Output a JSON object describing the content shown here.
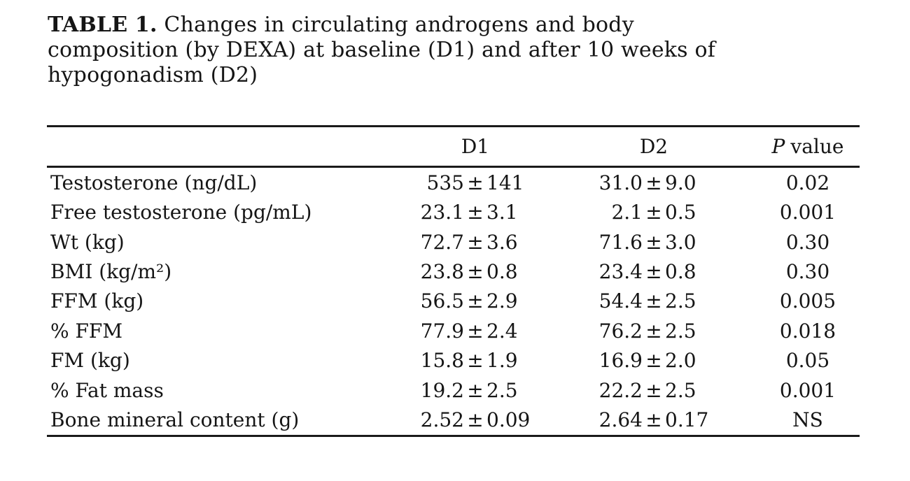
{
  "page": {
    "background_color": "#ffffff",
    "text_color": "#151515",
    "rule_color": "#1a1a1a"
  },
  "title": {
    "label": "TABLE 1.",
    "line1": "Changes in circulating androgens and body",
    "line2": "composition (by DEXA) at baseline (D1) and after 10 weeks of",
    "line3": "hypogonadism (D2)"
  },
  "table": {
    "pm": "±",
    "header": {
      "col1": "",
      "d1": "D1",
      "d2": "D2",
      "p_italic": "P",
      "p_rest": "value"
    },
    "rows": [
      {
        "label": "Testosterone (ng/dL)",
        "d1_value": "535",
        "d1_err": "141",
        "d2_value": "31.0",
        "d2_err": "9.0",
        "p": "0.02"
      },
      {
        "label": "Free testosterone (pg/mL)",
        "d1_value": "23.1",
        "d1_err": "3.1",
        "d2_value": "2.1",
        "d2_err": "0.5",
        "p": "0.001"
      },
      {
        "label": "Wt (kg)",
        "d1_value": "72.7",
        "d1_err": "3.6",
        "d2_value": "71.6",
        "d2_err": "3.0",
        "p": "0.30"
      },
      {
        "label": "BMI (kg/m²)",
        "d1_value": "23.8",
        "d1_err": "0.8",
        "d2_value": "23.4",
        "d2_err": "0.8",
        "p": "0.30"
      },
      {
        "label": "FFM (kg)",
        "d1_value": "56.5",
        "d1_err": "2.9",
        "d2_value": "54.4",
        "d2_err": "2.5",
        "p": "0.005"
      },
      {
        "label": "% FFM",
        "d1_value": "77.9",
        "d1_err": "2.4",
        "d2_value": "76.2",
        "d2_err": "2.5",
        "p": "0.018"
      },
      {
        "label": "FM (kg)",
        "d1_value": "15.8",
        "d1_err": "1.9",
        "d2_value": "16.9",
        "d2_err": "2.0",
        "p": "0.05"
      },
      {
        "label": "% Fat mass",
        "d1_value": "19.2",
        "d1_err": "2.5",
        "d2_value": "22.2",
        "d2_err": "2.5",
        "p": "0.001"
      },
      {
        "label": "Bone mineral content (g)",
        "d1_value": "2.52",
        "d1_err": "0.09",
        "d2_value": "2.64",
        "d2_err": "0.17",
        "p": "NS"
      }
    ]
  },
  "chart_data": {
    "type": "table",
    "title": "TABLE 1. Changes in circulating androgens and body composition (by DEXA) at baseline (D1) and after 10 weeks of hypogonadism (D2)",
    "columns": [
      "",
      "D1",
      "D2",
      "P value"
    ],
    "rows": [
      [
        "Testosterone (ng/dL)",
        "535 ± 141",
        "31.0 ± 9.0",
        "0.02"
      ],
      [
        "Free testosterone (pg/mL)",
        "23.1 ± 3.1",
        "2.1 ± 0.5",
        "0.001"
      ],
      [
        "Wt (kg)",
        "72.7 ± 3.6",
        "71.6 ± 3.0",
        "0.30"
      ],
      [
        "BMI (kg/m²)",
        "23.8 ± 0.8",
        "23.4 ± 0.8",
        "0.30"
      ],
      [
        "FFM (kg)",
        "56.5 ± 2.9",
        "54.4 ± 2.5",
        "0.005"
      ],
      [
        "% FFM",
        "77.9 ± 2.4",
        "76.2 ± 2.5",
        "0.018"
      ],
      [
        "FM (kg)",
        "15.8 ± 1.9",
        "16.9 ± 2.0",
        "0.05"
      ],
      [
        "% Fat mass",
        "19.2 ± 2.5",
        "22.2 ± 2.5",
        "0.001"
      ],
      [
        "Bone mineral content (g)",
        "2.52 ± 0.09",
        "2.64 ± 0.17",
        "NS"
      ]
    ]
  }
}
